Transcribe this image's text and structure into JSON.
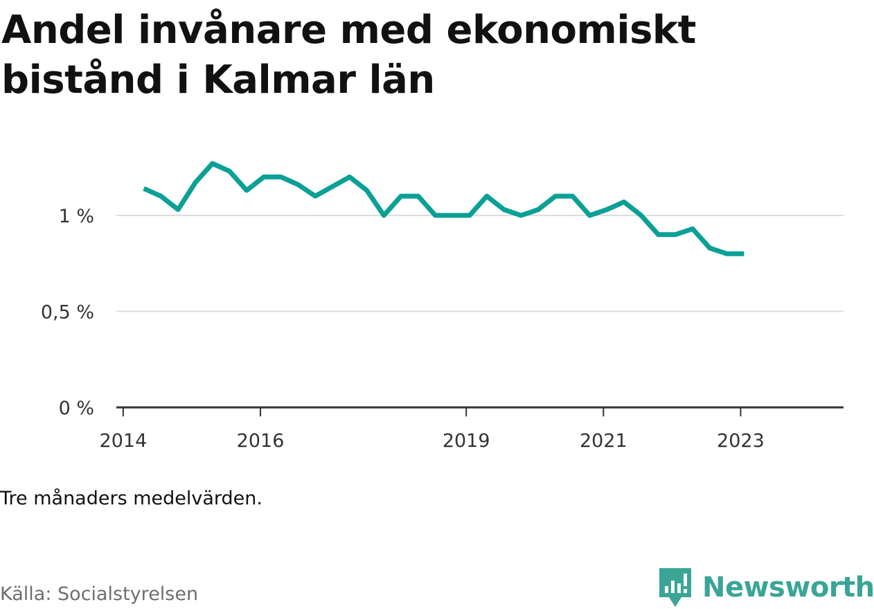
{
  "chart_data": {
    "type": "line",
    "title": "Andel invånare med ekonomiskt bistånd i Kalmar län",
    "xlabel": "",
    "ylabel": "",
    "x_ticks": [
      {
        "label": "2014",
        "value": 2014.0
      },
      {
        "label": "2016",
        "value": 2016.0
      },
      {
        "label": "2019",
        "value": 2019.0
      },
      {
        "label": "2021",
        "value": 2021.0
      },
      {
        "label": "2023",
        "value": 2023.0
      }
    ],
    "y_ticks": [
      {
        "label": "0 %",
        "value": 0
      },
      {
        "label": "0,5 %",
        "value": 0.5
      },
      {
        "label": "1 %",
        "value": 1.0
      }
    ],
    "xlim": [
      2013.9,
      2024.5
    ],
    "ylim": [
      0,
      1.4
    ],
    "grid": true,
    "series": [
      {
        "color": "#0aa096",
        "x": [
          2014.3,
          2014.55,
          2014.8,
          2015.05,
          2015.3,
          2015.55,
          2015.8,
          2016.05,
          2016.3,
          2016.55,
          2016.8,
          2017.05,
          2017.3,
          2017.55,
          2017.8,
          2018.05,
          2018.3,
          2018.55,
          2018.8,
          2019.05,
          2019.3,
          2019.55,
          2019.8,
          2020.05,
          2020.3,
          2020.55,
          2020.8,
          2021.05,
          2021.3,
          2021.55,
          2021.8,
          2022.05,
          2022.3,
          2022.55,
          2022.8,
          2023.05
        ],
        "values": [
          1.14,
          1.1,
          1.03,
          1.17,
          1.27,
          1.23,
          1.13,
          1.2,
          1.2,
          1.16,
          1.1,
          1.15,
          1.2,
          1.13,
          1.0,
          1.1,
          1.1,
          1.0,
          1.0,
          1.0,
          1.1,
          1.03,
          1.0,
          1.03,
          1.1,
          1.1,
          1.0,
          1.03,
          1.07,
          1.0,
          0.9,
          0.9,
          0.93,
          0.83,
          0.8,
          0.8
        ]
      }
    ]
  },
  "note": "Tre månaders medelvärden.",
  "source": "Källa: Socialstyrelsen",
  "brand": {
    "name": "Newsworthy",
    "icon": "newsworthy-logo-icon",
    "color": "#3aa597"
  }
}
